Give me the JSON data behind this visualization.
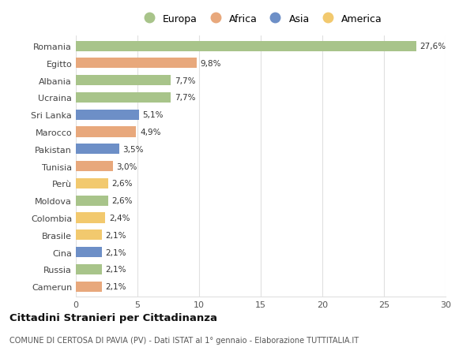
{
  "countries": [
    "Camerun",
    "Russia",
    "Cina",
    "Brasile",
    "Colombia",
    "Moldova",
    "Perù",
    "Tunisia",
    "Pakistan",
    "Marocco",
    "Sri Lanka",
    "Ucraina",
    "Albania",
    "Egitto",
    "Romania"
  ],
  "values": [
    2.1,
    2.1,
    2.1,
    2.1,
    2.4,
    2.6,
    2.6,
    3.0,
    3.5,
    4.9,
    5.1,
    7.7,
    7.7,
    9.8,
    27.6
  ],
  "labels": [
    "2,1%",
    "2,1%",
    "2,1%",
    "2,1%",
    "2,4%",
    "2,6%",
    "2,6%",
    "3,0%",
    "3,5%",
    "4,9%",
    "5,1%",
    "7,7%",
    "7,7%",
    "9,8%",
    "27,6%"
  ],
  "colors": [
    "#e8a87c",
    "#a8c48a",
    "#6d8fc7",
    "#f2c96e",
    "#f2c96e",
    "#a8c48a",
    "#f2c96e",
    "#e8a87c",
    "#6d8fc7",
    "#e8a87c",
    "#6d8fc7",
    "#a8c48a",
    "#a8c48a",
    "#e8a87c",
    "#a8c48a"
  ],
  "legend": [
    {
      "label": "Europa",
      "color": "#a8c48a"
    },
    {
      "label": "Africa",
      "color": "#e8a87c"
    },
    {
      "label": "Asia",
      "color": "#6d8fc7"
    },
    {
      "label": "America",
      "color": "#f2c96e"
    }
  ],
  "title": "Cittadini Stranieri per Cittadinanza",
  "subtitle": "COMUNE DI CERTOSA DI PAVIA (PV) - Dati ISTAT al 1° gennaio - Elaborazione TUTTITALIA.IT",
  "xlim": [
    0,
    30
  ],
  "xticks": [
    0,
    5,
    10,
    15,
    20,
    25,
    30
  ],
  "bg_color": "#ffffff",
  "grid_color": "#e0e0e0",
  "bar_height": 0.6
}
